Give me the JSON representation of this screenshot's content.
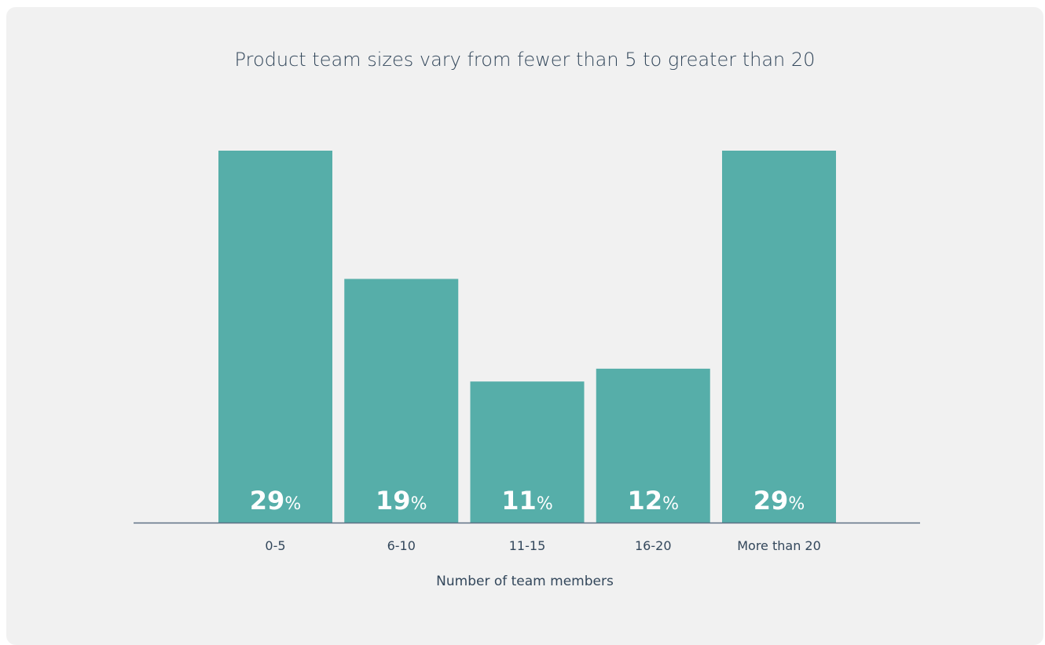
{
  "chart_data": {
    "type": "bar",
    "title": "Product team sizes vary from fewer than 5 to greater than 20",
    "xlabel": "Number of team members",
    "ylabel": "",
    "categories": [
      "0-5",
      "6-10",
      "11-15",
      "16-20",
      "More than 20"
    ],
    "values": [
      29,
      19,
      11,
      12,
      29
    ],
    "value_labels": [
      "29",
      "19",
      "11",
      "12",
      "29"
    ],
    "value_suffix": "%",
    "ylim": [
      0,
      29
    ],
    "grid": false,
    "legend": "none",
    "colors": {
      "bar": "#56aea9",
      "axis": "#5e7184",
      "text": "#33475b",
      "background": "#f1f1f1"
    }
  }
}
